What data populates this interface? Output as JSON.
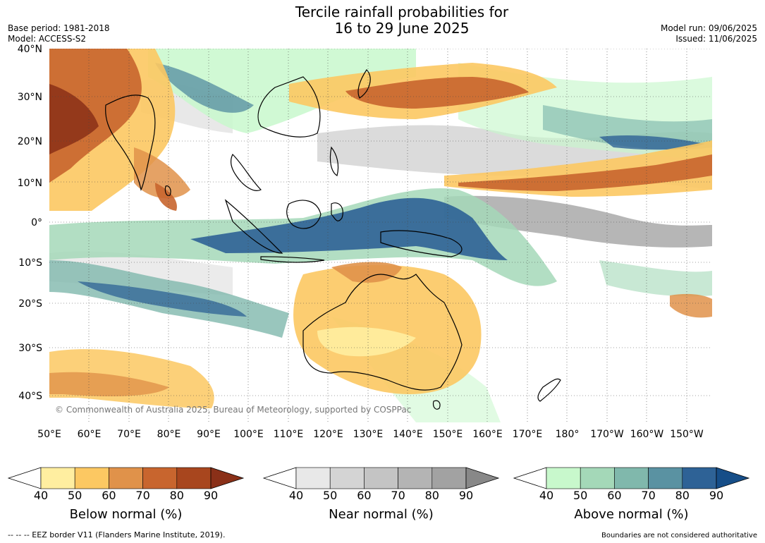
{
  "title": {
    "line1": "Tercile rainfall probabilities for",
    "line2": "16 to 29 June 2025"
  },
  "meta": {
    "base_period": "Base period: 1981-2018",
    "model": "Model: ACCESS-S2",
    "model_run": "Model run: 09/06/2025",
    "issued": "Issued: 11/06/2025"
  },
  "map": {
    "lat_labels": [
      "40°N",
      "30°N",
      "20°N",
      "10°N",
      "0°",
      "10°S",
      "20°S",
      "30°S",
      "40°S"
    ],
    "lon_labels": [
      "50°E",
      "60°E",
      "70°E",
      "80°E",
      "90°E",
      "100°E",
      "110°E",
      "120°E",
      "130°E",
      "140°E",
      "150°E",
      "160°E",
      "170°E",
      "180°",
      "170°W",
      "160°W",
      "150°W"
    ],
    "copyright": "© Commonwealth of Australia 2025, Bureau of Meteorology, supported by COSPPac"
  },
  "colorbars": [
    {
      "name": "below",
      "title": "Below normal (%)",
      "ticks": [
        "40",
        "50",
        "60",
        "70",
        "80",
        "90"
      ],
      "colors": [
        "#ffeea0",
        "#fcc862",
        "#e0924a",
        "#c8652e",
        "#a8461e",
        "#8a3018"
      ]
    },
    {
      "name": "near",
      "title": "Near normal (%)",
      "ticks": [
        "40",
        "50",
        "60",
        "70",
        "80",
        "90"
      ],
      "colors": [
        "#e8e8e8",
        "#d4d4d4",
        "#c4c4c4",
        "#b4b4b4",
        "#a2a2a2",
        "#888888"
      ]
    },
    {
      "name": "above",
      "title": "Above normal (%)",
      "ticks": [
        "40",
        "50",
        "60",
        "70",
        "80",
        "90"
      ],
      "colors": [
        "#c8f8cc",
        "#a4d8b8",
        "#80b8ac",
        "#5a92a2",
        "#2e6296",
        "#164e88"
      ]
    }
  ],
  "footer": {
    "legend_note": "--  --  -- EEZ border V11 (Flanders Marine Institute, 2019).",
    "disclaimer": "Boundaries are not considered authoritative"
  }
}
